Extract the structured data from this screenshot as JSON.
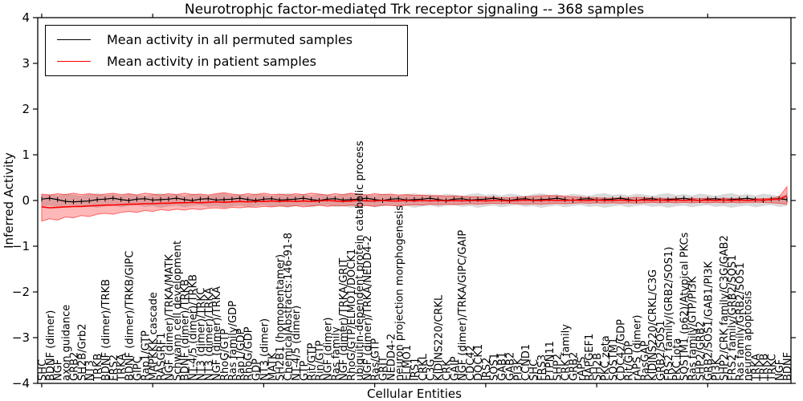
{
  "figure": {
    "title": "Neurotrophic factor-mediated Trk receptor signaling -- 368 samples",
    "xlabel": "Cellular Entities",
    "ylabel": "Inferred Activity",
    "sample_count": 368,
    "legend": {
      "permuted_label": "Mean activity in all permuted samples",
      "patient_label": "Mean activity in patient samples"
    },
    "colors": {
      "permuted_line": "#000000",
      "patient_line": "#ff0000",
      "permuted_band": "rgba(0,0,0,0.15)",
      "patient_band": "rgba(255,0,0,0.28)",
      "patient_band_edge": "rgba(255,0,0,0.55)"
    }
  },
  "chart_data": {
    "type": "line",
    "title": "Neurotrophic factor-mediated Trk receptor signaling -- 368 samples",
    "xlabel": "Cellular Entities",
    "ylabel": "Inferred Activity",
    "ylim": [
      -4,
      4
    ],
    "yticks": [
      4,
      3,
      2,
      1,
      0,
      -1,
      -2,
      -3,
      -4
    ],
    "ytick_labels": [
      "4",
      "3",
      "2",
      "1",
      "0",
      "−1",
      "−2",
      "−3",
      "−4"
    ],
    "grid": false,
    "legend_position": "upper left",
    "x_categories": [
      "SHC",
      "BDNF (dimer)",
      "NGF",
      "axon guidance",
      "GRB2",
      "SH2B/Grb2",
      "NT3",
      "TRKB",
      "BDNF (dimer)/TRKB",
      "FRS2",
      "TRKA",
      "BDNF (dimer)/TRKB/GIPC",
      "GIPC",
      "Rap1/GTP",
      "MAPKKK cascade",
      "RASGRF1",
      "NGF (dimer)/TRKA/MATK",
      "Schwann cell development",
      "BDNF (dimer)/TRKB",
      "NT-4/5 (dimer)/TRKB",
      "NT3 (dimer)/TRKC",
      "NT3 (dimer)/TRKA",
      "NGF (dimer)/TRKA",
      "RhoG/GTP",
      "Ras family/GDP",
      "Rap1/GDP",
      "RhoG/GDP",
      "GDP",
      "NT3 (dimer)",
      "MATK",
      "SH2B1 (homopentamer)",
      "ChemicalAbstracts:146-91-8",
      "NT-4/5 (dimer)",
      "GTP",
      "Rit/GTP",
      "Rin/GTP",
      "NGF (dimer)",
      "Ras family",
      "NGF (dimer)/TRKA/GRIT",
      "RhoG/GTP/ELMO1/DOCK1",
      "ubiquitin-dependent protein catabolic process",
      "NGF (dimer)/TRKA/NEDD4-2",
      "Ras/GTP",
      "GRIT",
      "NEDD4-2",
      "neuron projection morphogenesis",
      "ELMO1",
      "IRS1",
      "CRKL",
      "C3G",
      "KIDINS220/CRKL",
      "CRK",
      "GAIP",
      "NGF (dimer)/TRKA/GIPC/GAIP",
      "CDC42",
      "DOCK1",
      "IRS2",
      "SOS1",
      "GAB1",
      "GAB2",
      "PI3K",
      "CCND1",
      "SHC",
      "FRS3",
      "PTPN11",
      "SHP2",
      "CRK family",
      "GRB2",
      "rAPS",
      "RAPGEF1",
      "SH2B",
      "PKC zeta",
      "SQSTM1",
      "CDC42/GDP",
      "Rit/GDP",
      "rAPS (dimer)",
      "RasGAP",
      "KIDINS220/CRKL/C3G",
      "GRB2/SOS1",
      "FRS2 family/(GRB2/SOS1)",
      "PKC iota",
      "SQSTM1 (p62)/Atypical PKCs",
      "Ras family/GTP/PI3K",
      "SHP2/GRB2",
      "GRB2/SOS1/GAB1/PI3K",
      "PI3K",
      "SHP2/CRK family/C3G/GAB2",
      "FRS2 family/GRB2/SOS1",
      "Ras family/GRB2/SOS1",
      "neuron apoptosis",
      "TRKA",
      "TRKB",
      "TRKC",
      "NGF",
      "BDNF"
    ],
    "series": [
      {
        "name": "Mean activity in all permuted samples",
        "color": "#000000",
        "values": [
          0.03,
          0.05,
          0.02,
          -0.02,
          -0.03,
          -0.02,
          -0.01,
          0.02,
          0.03,
          0.05,
          0.02,
          0.0,
          0.03,
          0.04,
          0.01,
          0.02,
          0.03,
          0.05,
          0.02,
          0.0,
          0.03,
          0.04,
          0.01,
          0.02,
          0.03,
          0.05,
          0.02,
          0.0,
          0.03,
          0.04,
          0.01,
          0.02,
          0.03,
          0.05,
          0.02,
          0.0,
          0.03,
          0.04,
          0.01,
          0.02,
          0.03,
          0.05,
          0.02,
          0.0,
          0.03,
          0.04,
          0.01,
          0.02,
          0.03,
          0.05,
          0.02,
          0.0,
          0.03,
          0.04,
          0.01,
          0.02,
          0.03,
          0.05,
          0.02,
          0.0,
          0.03,
          0.04,
          0.01,
          0.02,
          0.03,
          0.05,
          0.02,
          0.0,
          0.03,
          0.04,
          0.01,
          0.02,
          0.03,
          0.05,
          0.02,
          0.0,
          0.03,
          0.04,
          0.01,
          0.02,
          0.03,
          0.05,
          0.02,
          0.0,
          0.03,
          0.04,
          0.01,
          0.02,
          0.03,
          0.05,
          0.02,
          0.0,
          0.03,
          0.04,
          0.02
        ],
        "band_upper": [
          0.12,
          0.14,
          0.11,
          0.15,
          0.13,
          0.1,
          0.14,
          0.16,
          0.12,
          0.14,
          0.11,
          0.15,
          0.13,
          0.1,
          0.14,
          0.16,
          0.12,
          0.14,
          0.11,
          0.15,
          0.13,
          0.1,
          0.14,
          0.16,
          0.12,
          0.14,
          0.11,
          0.15,
          0.13,
          0.1,
          0.14,
          0.16,
          0.12,
          0.14,
          0.11,
          0.15,
          0.13,
          0.1,
          0.14,
          0.16,
          0.12,
          0.14,
          0.11,
          0.15,
          0.13,
          0.1,
          0.14,
          0.16,
          0.12,
          0.14,
          0.11,
          0.15,
          0.13,
          0.1,
          0.14,
          0.16,
          0.12,
          0.14,
          0.11,
          0.15,
          0.13,
          0.1,
          0.14,
          0.16,
          0.12,
          0.14,
          0.11,
          0.15,
          0.13,
          0.1,
          0.14,
          0.16,
          0.12,
          0.14,
          0.11,
          0.15,
          0.13,
          0.1,
          0.14,
          0.16,
          0.12,
          0.14,
          0.11,
          0.15,
          0.13,
          0.1,
          0.14,
          0.16,
          0.12,
          0.14,
          0.11,
          0.15,
          0.13,
          0.1,
          0.14
        ],
        "band_lower": [
          -0.13,
          -0.11,
          -0.15,
          -0.12,
          -0.1,
          -0.14,
          -0.12,
          -0.16,
          -0.13,
          -0.11,
          -0.15,
          -0.12,
          -0.1,
          -0.14,
          -0.12,
          -0.16,
          -0.13,
          -0.11,
          -0.15,
          -0.12,
          -0.1,
          -0.14,
          -0.12,
          -0.16,
          -0.13,
          -0.11,
          -0.15,
          -0.12,
          -0.1,
          -0.14,
          -0.12,
          -0.16,
          -0.13,
          -0.11,
          -0.15,
          -0.12,
          -0.1,
          -0.14,
          -0.12,
          -0.16,
          -0.13,
          -0.11,
          -0.15,
          -0.12,
          -0.1,
          -0.14,
          -0.12,
          -0.16,
          -0.13,
          -0.11,
          -0.15,
          -0.12,
          -0.1,
          -0.14,
          -0.12,
          -0.16,
          -0.13,
          -0.11,
          -0.15,
          -0.12,
          -0.1,
          -0.14,
          -0.12,
          -0.16,
          -0.13,
          -0.11,
          -0.15,
          -0.12,
          -0.1,
          -0.14,
          -0.12,
          -0.16,
          -0.13,
          -0.11,
          -0.15,
          -0.12,
          -0.1,
          -0.14,
          -0.12,
          -0.16,
          -0.13,
          -0.11,
          -0.15,
          -0.12,
          -0.1,
          -0.14,
          -0.12,
          -0.16,
          -0.13,
          -0.11,
          -0.15,
          -0.12,
          -0.1,
          -0.14,
          -0.12
        ]
      },
      {
        "name": "Mean activity in patient samples",
        "color": "#ff0000",
        "values": [
          -0.14,
          -0.16,
          -0.15,
          -0.14,
          -0.13,
          -0.13,
          -0.12,
          -0.11,
          -0.1,
          -0.1,
          -0.09,
          -0.08,
          -0.08,
          -0.07,
          -0.07,
          -0.06,
          -0.06,
          -0.05,
          -0.05,
          -0.04,
          -0.05,
          -0.04,
          -0.03,
          -0.04,
          -0.03,
          -0.02,
          -0.03,
          -0.02,
          -0.02,
          -0.01,
          -0.02,
          -0.01,
          -0.02,
          -0.01,
          -0.02,
          -0.01,
          0.0,
          -0.01,
          -0.02,
          -0.01,
          0.0,
          -0.01,
          -0.01,
          0.0,
          -0.01,
          -0.01,
          0.0,
          -0.01,
          0.0,
          -0.01,
          0.0,
          -0.01,
          0.0,
          -0.01,
          0.0,
          0.0,
          -0.01,
          0.0,
          0.0,
          -0.01,
          0.0,
          0.01,
          0.0,
          0.0,
          0.01,
          0.0,
          0.0,
          0.01,
          0.0,
          0.0,
          0.01,
          0.0,
          0.0,
          0.01,
          0.0,
          0.0,
          0.01,
          0.0,
          0.01,
          0.0,
          0.01,
          0.0,
          0.01,
          0.0,
          0.01,
          0.0,
          0.01,
          0.0,
          0.01,
          0.0,
          0.01,
          0.01,
          0.02,
          0.03,
          0.1
        ],
        "band_upper": [
          0.14,
          0.12,
          0.15,
          0.13,
          0.16,
          0.13,
          0.15,
          0.12,
          0.14,
          0.16,
          0.13,
          0.15,
          0.12,
          0.16,
          0.14,
          0.12,
          0.15,
          0.13,
          0.16,
          0.13,
          0.14,
          0.12,
          0.15,
          0.17,
          0.14,
          0.12,
          0.15,
          0.13,
          0.16,
          0.13,
          0.14,
          0.12,
          0.15,
          0.13,
          0.16,
          0.14,
          0.12,
          0.15,
          0.13,
          0.16,
          0.14,
          0.12,
          0.15,
          0.13,
          0.14,
          0.12,
          0.13,
          0.11,
          0.12,
          0.1,
          0.11,
          0.09,
          0.1,
          0.09,
          0.08,
          0.08,
          0.07,
          0.07,
          0.06,
          0.06,
          0.07,
          0.08,
          0.09,
          0.1,
          0.11,
          0.1,
          0.09,
          0.08,
          0.07,
          0.06,
          0.06,
          0.05,
          0.05,
          0.06,
          0.05,
          0.07,
          0.06,
          0.05,
          0.05,
          0.04,
          0.05,
          0.04,
          0.05,
          0.04,
          0.05,
          0.04,
          0.05,
          0.04,
          0.05,
          0.04,
          0.04,
          0.04,
          0.05,
          0.08,
          0.3
        ],
        "band_lower": [
          -0.45,
          -0.4,
          -0.43,
          -0.36,
          -0.38,
          -0.33,
          -0.35,
          -0.3,
          -0.28,
          -0.3,
          -0.26,
          -0.24,
          -0.26,
          -0.22,
          -0.24,
          -0.2,
          -0.22,
          -0.19,
          -0.21,
          -0.18,
          -0.2,
          -0.17,
          -0.16,
          -0.18,
          -0.15,
          -0.16,
          -0.14,
          -0.15,
          -0.13,
          -0.14,
          -0.12,
          -0.13,
          -0.11,
          -0.14,
          -0.12,
          -0.1,
          -0.13,
          -0.11,
          -0.12,
          -0.1,
          -0.12,
          -0.11,
          -0.13,
          -0.1,
          -0.11,
          -0.12,
          -0.1,
          -0.09,
          -0.1,
          -0.08,
          -0.09,
          -0.08,
          -0.09,
          -0.08,
          -0.07,
          -0.08,
          -0.07,
          -0.06,
          -0.07,
          -0.06,
          -0.07,
          -0.08,
          -0.07,
          -0.08,
          -0.07,
          -0.06,
          -0.07,
          -0.06,
          -0.05,
          -0.06,
          -0.05,
          -0.06,
          -0.05,
          -0.06,
          -0.05,
          -0.06,
          -0.05,
          -0.04,
          -0.05,
          -0.04,
          -0.05,
          -0.04,
          -0.05,
          -0.04,
          -0.05,
          -0.04,
          -0.05,
          -0.04,
          -0.05,
          -0.04,
          -0.04,
          -0.04,
          -0.05,
          -0.06,
          -0.08
        ]
      }
    ]
  }
}
